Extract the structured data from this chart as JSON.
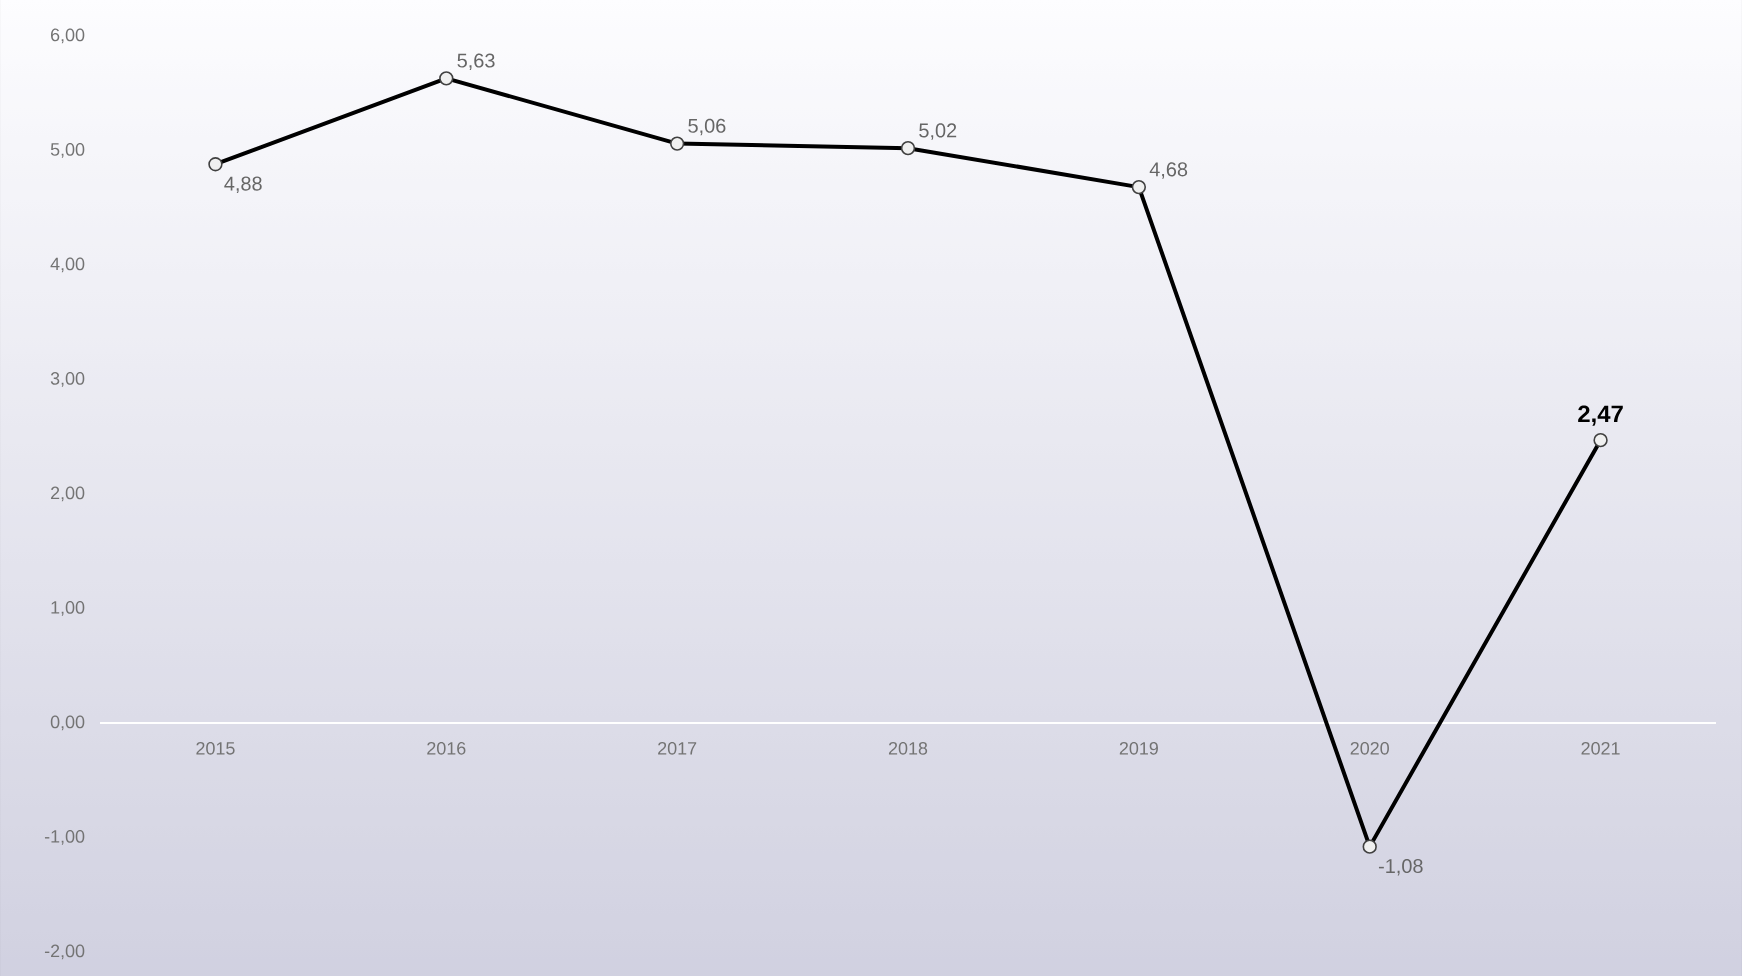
{
  "chart_data": {
    "type": "line",
    "categories": [
      "2015",
      "2016",
      "2017",
      "2018",
      "2019",
      "2020",
      "2021"
    ],
    "series": [
      {
        "color": "#000000",
        "values": [
          4.88,
          5.63,
          5.06,
          5.02,
          4.68,
          -1.08,
          2.47
        ],
        "value_labels": [
          "4,88",
          "5,63",
          "5,06",
          "5,02",
          "4,68",
          "-1,08",
          "2,47"
        ]
      }
    ],
    "ylim": [
      -2,
      6
    ],
    "yticks": [
      {
        "value": -2,
        "label": "-2,00"
      },
      {
        "value": -1,
        "label": "-1,00"
      },
      {
        "value": 0,
        "label": "0,00"
      },
      {
        "value": 1,
        "label": "1,00"
      },
      {
        "value": 2,
        "label": "2,00"
      },
      {
        "value": 3,
        "label": "3,00"
      },
      {
        "value": 4,
        "label": "4,00"
      },
      {
        "value": 5,
        "label": "5,00"
      },
      {
        "value": 6,
        "label": "6,00"
      }
    ],
    "marker": "circle",
    "line_style": "solid"
  }
}
